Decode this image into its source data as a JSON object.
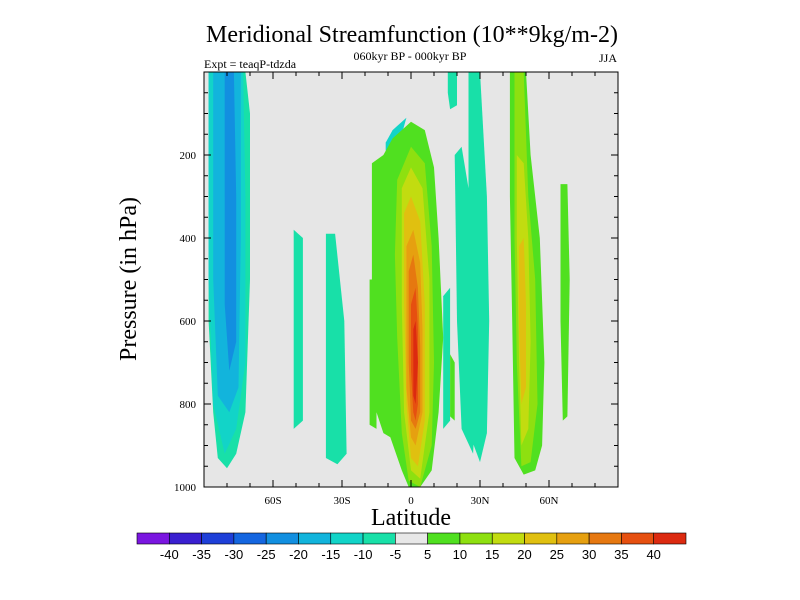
{
  "chart_data": {
    "type": "contour",
    "title": "Meridional Streamfunction (10**9kg/m-2)",
    "subtitle": "060kyr BP - 000kyr BP",
    "experiment": "Expt = teaqP-tdzda",
    "season": "JJA",
    "xlabel": "Latitude",
    "ylabel": "Pressure (in hPa)",
    "xlim": [
      -90,
      90
    ],
    "ylim": [
      1000,
      0
    ],
    "x_ticks": [
      {
        "value": -60,
        "label": "60S"
      },
      {
        "value": -30,
        "label": "30S"
      },
      {
        "value": 0,
        "label": "0"
      },
      {
        "value": 30,
        "label": "30N"
      },
      {
        "value": 60,
        "label": "60N"
      }
    ],
    "y_ticks": [
      {
        "value": 200,
        "label": "200"
      },
      {
        "value": 400,
        "label": "400"
      },
      {
        "value": 600,
        "label": "600"
      },
      {
        "value": 800,
        "label": "800"
      },
      {
        "value": 1000,
        "label": "1000"
      }
    ],
    "background_color": "#e6e6e6",
    "contour_levels": [
      -40,
      -35,
      -30,
      -25,
      -20,
      -15,
      -10,
      -5,
      5,
      10,
      15,
      20,
      25,
      30,
      35,
      40
    ],
    "colorbar_colors": [
      "#7a16e0",
      "#3a1fd0",
      "#1e3fd8",
      "#1466e0",
      "#128fe0",
      "#12b4dc",
      "#12d4c8",
      "#18e0a8",
      "#e8e8e8",
      "#50e020",
      "#8ee010",
      "#c2dc10",
      "#e0c010",
      "#e6a010",
      "#e67810",
      "#e65010",
      "#dc2a10"
    ],
    "features": [
      {
        "name": "southern-negative-cell",
        "center": [
          -78,
          520
        ],
        "sign": "negative",
        "peak": -25,
        "lat_extent": [
          -88,
          -72
        ],
        "pressure_extent": [
          0,
          960
        ]
      },
      {
        "name": "equatorial-positive-cell",
        "center": [
          3,
          700
        ],
        "sign": "positive",
        "peak": 40,
        "lat_extent": [
          -8,
          12
        ],
        "pressure_extent": [
          120,
          1000
        ]
      },
      {
        "name": "northern-positive-cell",
        "center": [
          50,
          500
        ],
        "sign": "positive",
        "peak": 20,
        "lat_extent": [
          43,
          58
        ],
        "pressure_extent": [
          0,
          960
        ]
      }
    ]
  }
}
